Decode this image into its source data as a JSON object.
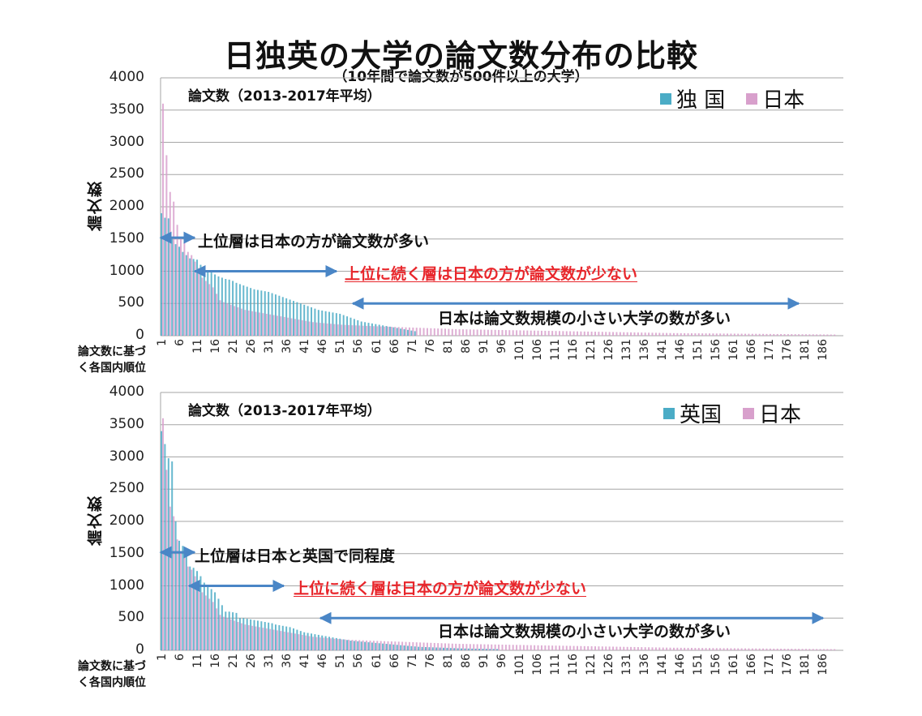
{
  "title": "日独英の大学の論文数分布の比較",
  "subtitle": "（10年間で論文数が500件以上の大学）",
  "colors": {
    "germany": "#4bacc6",
    "uk": "#4bacc6",
    "japan": "#d8a0cc",
    "overlap": "#8a8fc8",
    "arrow": "#4a86c6",
    "red": "#e8262b",
    "grid": "#a6a6a6"
  },
  "chart_data": [
    {
      "type": "bar",
      "title": "論文数（2013-2017年平均）",
      "xlabel": "論文数に基づく各国内順位",
      "ylabel": "論文数",
      "ylim": [
        0,
        4000
      ],
      "yticks": [
        0,
        500,
        1000,
        1500,
        2000,
        2500,
        3000,
        3500,
        4000
      ],
      "xticks": [
        1,
        6,
        11,
        16,
        21,
        26,
        31,
        36,
        41,
        46,
        51,
        56,
        61,
        66,
        71,
        76,
        81,
        86,
        91,
        96,
        101,
        106,
        111,
        116,
        121,
        126,
        131,
        136,
        141,
        146,
        151,
        156,
        161,
        166,
        171,
        176,
        181,
        186
      ],
      "grid": true,
      "legend_position": "top-right",
      "series": [
        {
          "name": "独 国",
          "values": [
            1900,
            1830,
            1820,
            1500,
            1420,
            1380,
            1300,
            1250,
            1200,
            1190,
            1180,
            1100,
            1050,
            1000,
            980,
            950,
            920,
            900,
            880,
            870,
            850,
            820,
            800,
            780,
            760,
            740,
            720,
            710,
            700,
            690,
            680,
            660,
            640,
            620,
            600,
            580,
            560,
            540,
            520,
            500,
            480,
            460,
            440,
            420,
            400,
            390,
            380,
            370,
            360,
            350,
            340,
            320,
            300,
            280,
            260,
            240,
            220,
            210,
            200,
            190,
            180,
            170,
            160,
            150,
            140,
            130,
            120,
            110,
            100,
            90,
            80,
            70
          ]
        },
        {
          "name": "日本",
          "values": [
            3600,
            2800,
            2230,
            2080,
            1720,
            1520,
            1450,
            1300,
            1250,
            1150,
            1050,
            900,
            850,
            800,
            750,
            650,
            550,
            520,
            500,
            480,
            460,
            440,
            420,
            400,
            390,
            380,
            370,
            360,
            350,
            340,
            330,
            320,
            310,
            300,
            290,
            280,
            270,
            260,
            250,
            240,
            230,
            220,
            210,
            205,
            200,
            195,
            190,
            185,
            180,
            175,
            170,
            168,
            165,
            162,
            160,
            158,
            155,
            152,
            150,
            148,
            146,
            144,
            142,
            140,
            138,
            136,
            134,
            132,
            130,
            128,
            126,
            124,
            122,
            120,
            118,
            116,
            114,
            112,
            110,
            108,
            106,
            104,
            102,
            100,
            99,
            98,
            97,
            96,
            95,
            94,
            93,
            92,
            91,
            90,
            89,
            88,
            87,
            86,
            85,
            84,
            83,
            82,
            81,
            80,
            79,
            78,
            77,
            76,
            75,
            74,
            73,
            72,
            71,
            70,
            69,
            68,
            67,
            66,
            65,
            64,
            63,
            62,
            61,
            60,
            59,
            58,
            57,
            56,
            55,
            54,
            53,
            52,
            51,
            50,
            49,
            48,
            47,
            46,
            45,
            44,
            43,
            42,
            41,
            40,
            40,
            39,
            39,
            38,
            38,
            37,
            37,
            36,
            36,
            35,
            35,
            34,
            34,
            33,
            33,
            32,
            32,
            31,
            31,
            30,
            30,
            29,
            29,
            28,
            28,
            27,
            27,
            26,
            26,
            25,
            25,
            24,
            24,
            23,
            23,
            22,
            22,
            21,
            21,
            20,
            20,
            19,
            19,
            18,
            18
          ]
        }
      ],
      "annotations": [
        {
          "text": "上位層は日本の方が論文数が多い",
          "color": "black"
        },
        {
          "text": "上位に続く層は日本の方が論文数が少ない",
          "color": "red"
        },
        {
          "text": "日本は論文数規模の小さい大学の数が多い",
          "color": "black"
        }
      ]
    },
    {
      "type": "bar",
      "title": "論文数（2013-2017年平均）",
      "xlabel": "論文数に基づく各国内順位",
      "ylabel": "論文数",
      "ylim": [
        0,
        4000
      ],
      "yticks": [
        0,
        500,
        1000,
        1500,
        2000,
        2500,
        3000,
        3500,
        4000
      ],
      "xticks": [
        1,
        6,
        11,
        16,
        21,
        26,
        31,
        36,
        41,
        46,
        51,
        56,
        61,
        66,
        71,
        76,
        81,
        86,
        91,
        96,
        101,
        106,
        111,
        116,
        121,
        126,
        131,
        136,
        141,
        146,
        151,
        156,
        161,
        166,
        171,
        176,
        181,
        186
      ],
      "grid": true,
      "legend_position": "top-right",
      "series": [
        {
          "name": "英国",
          "values": [
            3400,
            3200,
            2980,
            2930,
            2000,
            1700,
            1620,
            1500,
            1300,
            1280,
            1230,
            1150,
            1050,
            1000,
            950,
            900,
            800,
            700,
            600,
            600,
            590,
            580,
            500,
            500,
            490,
            480,
            470,
            460,
            450,
            440,
            430,
            420,
            400,
            390,
            380,
            370,
            360,
            340,
            320,
            300,
            280,
            270,
            260,
            250,
            240,
            230,
            220,
            210,
            200,
            190,
            180,
            170,
            160,
            150,
            145,
            140,
            135,
            130,
            125,
            120,
            115,
            110,
            105,
            100,
            95,
            90,
            85,
            80,
            75,
            70,
            65,
            60,
            55,
            52,
            50,
            48,
            46,
            44,
            42,
            40,
            38,
            36,
            34,
            32,
            30,
            29,
            28,
            27,
            26,
            25,
            24,
            23,
            22,
            21,
            20
          ]
        },
        {
          "name": "日本",
          "values": [
            3600,
            2800,
            2230,
            2080,
            1720,
            1520,
            1450,
            1300,
            1250,
            1150,
            1050,
            900,
            850,
            800,
            750,
            650,
            550,
            520,
            500,
            480,
            460,
            440,
            420,
            400,
            390,
            380,
            370,
            360,
            350,
            340,
            330,
            320,
            310,
            300,
            290,
            280,
            270,
            260,
            250,
            240,
            230,
            220,
            210,
            205,
            200,
            195,
            190,
            185,
            180,
            175,
            170,
            168,
            165,
            162,
            160,
            158,
            155,
            152,
            150,
            148,
            146,
            144,
            142,
            140,
            138,
            136,
            134,
            132,
            130,
            128,
            126,
            124,
            122,
            120,
            118,
            116,
            114,
            112,
            110,
            108,
            106,
            104,
            102,
            100,
            99,
            98,
            97,
            96,
            95,
            94,
            93,
            92,
            91,
            90,
            89,
            88,
            87,
            86,
            85,
            84,
            83,
            82,
            81,
            80,
            79,
            78,
            77,
            76,
            75,
            74,
            73,
            72,
            71,
            70,
            69,
            68,
            67,
            66,
            65,
            64,
            63,
            62,
            61,
            60,
            59,
            58,
            57,
            56,
            55,
            54,
            53,
            52,
            51,
            50,
            49,
            48,
            47,
            46,
            45,
            44,
            43,
            42,
            41,
            40,
            40,
            39,
            39,
            38,
            38,
            37,
            37,
            36,
            36,
            35,
            35,
            34,
            34,
            33,
            33,
            32,
            32,
            31,
            31,
            30,
            30,
            29,
            29,
            28,
            28,
            27,
            27,
            26,
            26,
            25,
            25,
            24,
            24,
            23,
            23,
            22,
            22,
            21,
            21,
            20,
            20,
            19,
            19,
            18,
            18
          ]
        }
      ],
      "annotations": [
        {
          "text": "上位層は日本と英国で同程度",
          "color": "black"
        },
        {
          "text": "上位に続く層は日本の方が論文数が少ない",
          "color": "red"
        },
        {
          "text": "日本は論文数規模の小さい大学の数が多い",
          "color": "black"
        }
      ]
    }
  ],
  "charts": [
    {
      "series_label": "論文数（2013-2017年平均）",
      "legend": [
        {
          "label": "独 国",
          "color": "#4bacc6"
        },
        {
          "label": "日本",
          "color": "#d8a0cc"
        }
      ],
      "ylabel": "論文数",
      "xcap_line1": "論文数に基づ",
      "xcap_line2": "く各国内順位",
      "ann1": "上位層は日本の方が論文数が多い",
      "ann2": "上位に続く層は日本の方が論文数が少ない",
      "ann3": "日本は論文数規模の小さい大学の数が多い"
    },
    {
      "series_label": "論文数（2013-2017年平均）",
      "legend": [
        {
          "label": "英国",
          "color": "#4bacc6"
        },
        {
          "label": "日本",
          "color": "#d8a0cc"
        }
      ],
      "ylabel": "論文数",
      "xcap_line1": "論文数に基づ",
      "xcap_line2": "く各国内順位",
      "ann1": "上位層は日本と英国で同程度",
      "ann2": "上位に続く層は日本の方が論文数が少ない",
      "ann3": "日本は論文数規模の小さい大学の数が多い"
    }
  ]
}
